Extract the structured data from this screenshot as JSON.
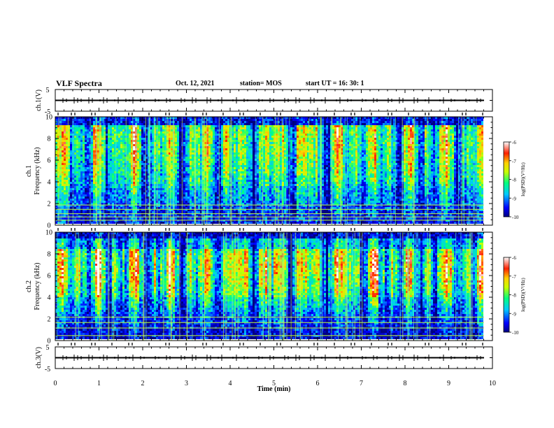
{
  "header": {
    "title": "VLF Spectra",
    "date": "Oct. 12, 2021",
    "station": "station= MOS",
    "start": "start  UT =   16: 30: 1"
  },
  "chart_data": [
    {
      "type": "line",
      "ylabel": "ch.1(V)",
      "ylim": [
        -5,
        5
      ],
      "yticks": [
        "5",
        "-5"
      ],
      "xlim": [
        0,
        10
      ],
      "series": [
        {
          "values": [
            0,
            0
          ]
        }
      ]
    },
    {
      "type": "heatmap",
      "ylabel": "ch.1\nFrequency (kHz)",
      "ylim": [
        0,
        10
      ],
      "yticks": [
        "0",
        "2",
        "4",
        "6",
        "8",
        "10"
      ],
      "xlim": [
        0,
        10
      ],
      "z_range": [
        -10,
        -6
      ],
      "colorbar": {
        "label": "log(PSD)(V²/Hz)",
        "ticks": [
          "-10",
          "-9",
          "-8",
          "-7",
          "-6"
        ]
      }
    },
    {
      "type": "heatmap",
      "ylabel": "ch.2\nFrequency (kHz)",
      "ylim": [
        0,
        10
      ],
      "yticks": [
        "0",
        "2",
        "4",
        "6",
        "8",
        "10"
      ],
      "xlim": [
        0,
        10
      ],
      "z_range": [
        -10,
        -6
      ],
      "colorbar": {
        "label": "log(PSD)(V²/Hz)",
        "ticks": [
          "-10",
          "-9",
          "-8",
          "-7",
          "-6"
        ]
      }
    },
    {
      "type": "line",
      "ylabel": "ch.3(V)",
      "ylim": [
        -5,
        5
      ],
      "yticks": [
        "5",
        "-5"
      ],
      "xlim": [
        0,
        10
      ],
      "xlabel": "Time  (min)",
      "xticks": [
        "0",
        "1",
        "2",
        "3",
        "4",
        "5",
        "6",
        "7",
        "8",
        "9",
        "10"
      ],
      "series": [
        {
          "values": [
            0,
            0
          ]
        }
      ]
    }
  ]
}
